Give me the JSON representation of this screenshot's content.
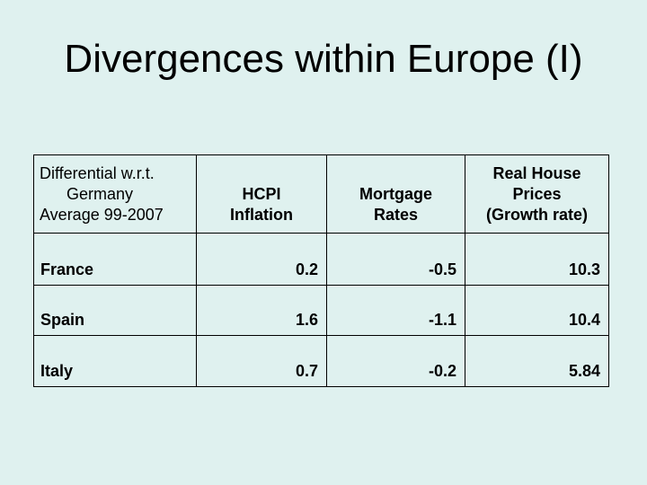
{
  "slide": {
    "title": "Divergences within Europe (I)",
    "background_color": "#dff1ef",
    "text_color": "#000000",
    "border_color": "#000000"
  },
  "table": {
    "header": {
      "col1_lines": [
        "Differential w.r.t.",
        "Germany",
        "Average 99-2007"
      ],
      "col2_lines": [
        "HCPI",
        "Inflation"
      ],
      "col3_lines": [
        "Mortgage",
        "Rates"
      ],
      "col4_lines": [
        "Real House",
        "Prices",
        "(Growth rate)"
      ]
    },
    "rows": [
      {
        "label": "France",
        "values": [
          "0.2",
          "-0.5",
          "10.3"
        ]
      },
      {
        "label": "Spain",
        "values": [
          "1.6",
          "-1.1",
          "10.4"
        ]
      },
      {
        "label": "Italy",
        "values": [
          "0.7",
          "-0.2",
          "5.84"
        ]
      }
    ]
  },
  "chart_data": {
    "type": "table",
    "title": "Divergences within Europe (I)",
    "columns": [
      "Differential w.r.t. Germany Average 99-2007",
      "HCPI Inflation",
      "Mortgage Rates",
      "Real House Prices (Growth rate)"
    ],
    "rows": [
      {
        "country": "France",
        "hcpi_inflation": 0.2,
        "mortgage_rates": -0.5,
        "real_house_prices_growth_rate": 10.3
      },
      {
        "country": "Spain",
        "hcpi_inflation": 1.6,
        "mortgage_rates": -1.1,
        "real_house_prices_growth_rate": 10.4
      },
      {
        "country": "Italy",
        "hcpi_inflation": 0.7,
        "mortgage_rates": -0.2,
        "real_house_prices_growth_rate": 5.84
      }
    ]
  }
}
